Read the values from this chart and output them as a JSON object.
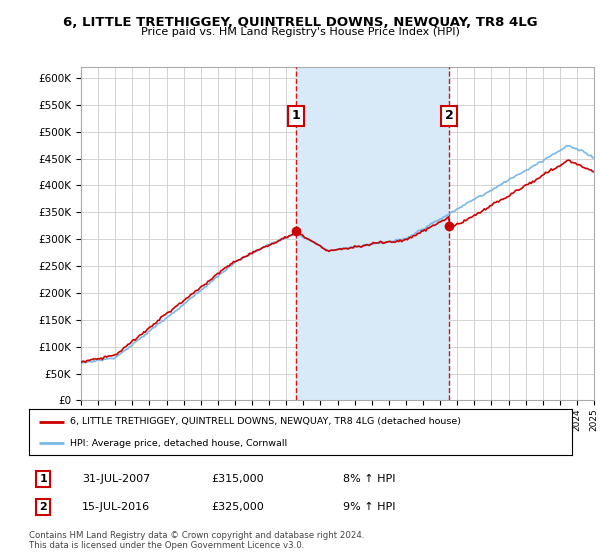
{
  "title": "6, LITTLE TRETHIGGEY, QUINTRELL DOWNS, NEWQUAY, TR8 4LG",
  "subtitle": "Price paid vs. HM Land Registry's House Price Index (HPI)",
  "ylabel_ticks": [
    "£0",
    "£50K",
    "£100K",
    "£150K",
    "£200K",
    "£250K",
    "£300K",
    "£350K",
    "£400K",
    "£450K",
    "£500K",
    "£550K",
    "£600K"
  ],
  "ylim": [
    0,
    620000
  ],
  "ytick_values": [
    0,
    50000,
    100000,
    150000,
    200000,
    250000,
    300000,
    350000,
    400000,
    450000,
    500000,
    550000,
    600000
  ],
  "x_start_year": 1995,
  "x_end_year": 2025,
  "sale1_date": 2007.58,
  "sale1_price": 315000,
  "sale1_label": "1",
  "sale2_date": 2016.54,
  "sale2_price": 325000,
  "sale2_label": "2",
  "hpi_color": "#7ab8e8",
  "property_color": "#cc0000",
  "dashed_color": "#cc0000",
  "shade_color": "#d8eaf8",
  "grid_color": "#cccccc",
  "background_color": "#ffffff",
  "legend_label1": "6, LITTLE TRETHIGGEY, QUINTRELL DOWNS, NEWQUAY, TR8 4LG (detached house)",
  "legend_label2": "HPI: Average price, detached house, Cornwall",
  "annotation1_date": "31-JUL-2007",
  "annotation1_price": "£315,000",
  "annotation1_hpi": "8% ↑ HPI",
  "annotation2_date": "15-JUL-2016",
  "annotation2_price": "£325,000",
  "annotation2_hpi": "9% ↑ HPI",
  "footnote": "Contains HM Land Registry data © Crown copyright and database right 2024.\nThis data is licensed under the Open Government Licence v3.0."
}
